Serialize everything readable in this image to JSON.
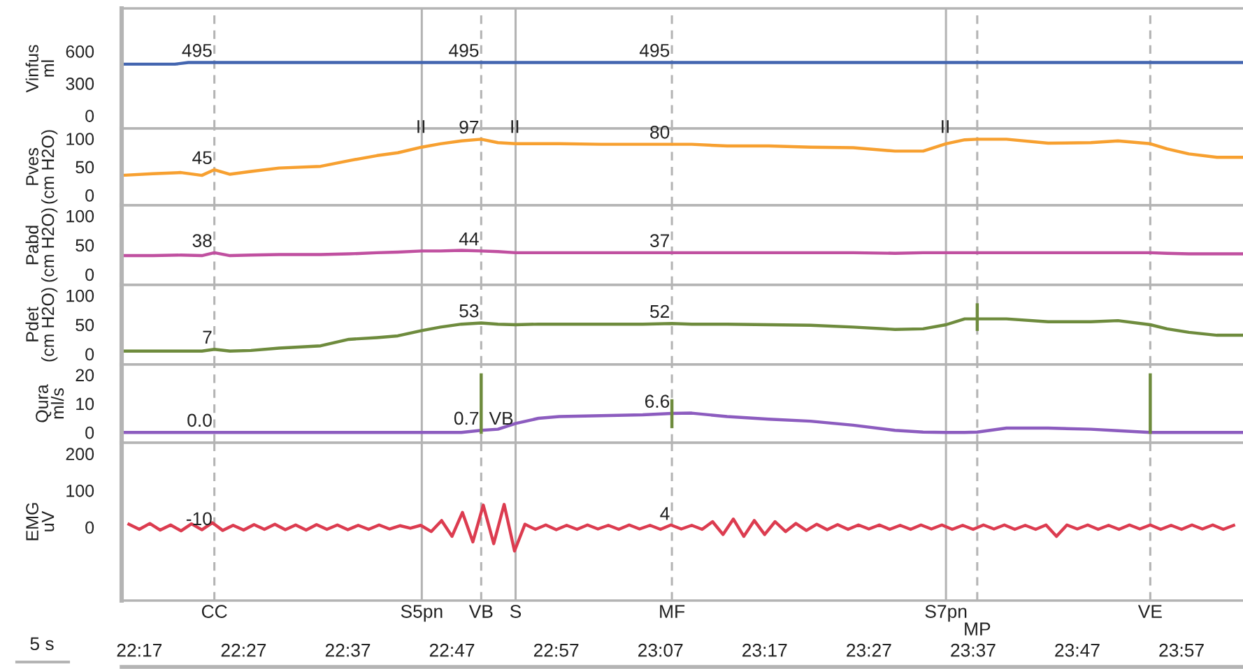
{
  "chart_data": [
    {
      "type": "line",
      "ylabel": "Vinfus\nml",
      "xlim": [
        22.255,
        24.0483
      ],
      "ylim": [
        -120,
        1000
      ],
      "yticks": [
        0,
        300,
        600
      ],
      "tick_labels": "y",
      "series": [
        {
          "color": "#4466b0",
          "x": [
            22.255,
            22.34,
            22.3617,
            24.0483
          ],
          "values": [
            480,
            480,
            495,
            495
          ]
        }
      ],
      "ref_lines": [
        {
          "axis": "x",
          "value": 22.4033,
          "line_style": "dashed"
        },
        {
          "axis": "x",
          "value": 22.735,
          "line_style": "solid"
        },
        {
          "axis": "x",
          "value": 22.83,
          "line_style": "dashed"
        },
        {
          "axis": "x",
          "value": 22.885,
          "line_style": "solid"
        },
        {
          "axis": "x",
          "value": 23.135,
          "line_style": "dashed"
        },
        {
          "axis": "x",
          "value": 23.5733,
          "line_style": "solid"
        },
        {
          "axis": "x",
          "value": 23.6233,
          "line_style": "dashed"
        },
        {
          "axis": "x",
          "value": 23.9,
          "line_style": "dashed"
        }
      ],
      "annotations": [
        {
          "text": "495",
          "x": 22.4033,
          "y": 495
        },
        {
          "text": "495",
          "x": 22.83,
          "y": 495
        },
        {
          "text": "495",
          "x": 23.135,
          "y": 495
        }
      ]
    },
    {
      "type": "line",
      "ylabel": "Pves\n(cm H2O)",
      "xlim": [
        22.255,
        24.0483
      ],
      "ylim": [
        -18,
        118
      ],
      "yticks": [
        0,
        50,
        100
      ],
      "tick_labels": "y",
      "x": [
        22.255,
        22.305,
        22.35,
        22.3833,
        22.4033,
        22.4283,
        22.4617,
        22.5067,
        22.5733,
        22.6183,
        22.6633,
        22.6967,
        22.735,
        22.765,
        22.7983,
        22.83,
        22.8567,
        22.885,
        22.9217,
        22.955,
        23.0217,
        23.0883,
        23.135,
        23.1667,
        23.2233,
        23.29,
        23.3567,
        23.425,
        23.4917,
        23.5367,
        23.5733,
        23.6033,
        23.6233,
        23.67,
        23.7367,
        23.805,
        23.8483,
        23.9,
        23.9267,
        23.9617,
        24.0067,
        24.0483
      ],
      "series": [
        {
          "color": "#f7a030",
          "values": [
            35,
            38,
            40,
            35,
            45,
            37,
            42,
            48,
            51,
            61,
            70,
            75,
            85,
            91,
            96,
            99,
            93,
            91,
            91,
            91,
            90,
            90,
            90,
            90,
            87,
            87,
            85,
            84,
            78,
            78,
            91,
            98,
            99,
            99,
            92,
            93,
            96,
            91,
            82,
            73,
            67,
            67
          ]
        }
      ],
      "ref_lines": [
        {
          "axis": "x",
          "value": 22.4033,
          "line_style": "dashed"
        },
        {
          "axis": "x",
          "value": 22.735,
          "line_style": "solid"
        },
        {
          "axis": "x",
          "value": 22.83,
          "line_style": "dashed"
        },
        {
          "axis": "x",
          "value": 22.885,
          "line_style": "solid"
        },
        {
          "axis": "x",
          "value": 23.135,
          "line_style": "dashed"
        },
        {
          "axis": "x",
          "value": 23.5733,
          "line_style": "solid"
        },
        {
          "axis": "x",
          "value": 23.6233,
          "line_style": "dashed"
        },
        {
          "axis": "x",
          "value": 23.9,
          "line_style": "dashed"
        }
      ],
      "annotations": [
        {
          "text": "45",
          "x": 22.4033,
          "y": 45
        },
        {
          "text": "97",
          "x": 22.83,
          "y": 99
        },
        {
          "text": "80",
          "x": 23.135,
          "y": 90
        },
        {
          "text": "II",
          "x": 22.745,
          "y": 100
        },
        {
          "text": "II",
          "x": 22.895,
          "y": 100
        },
        {
          "text": "II",
          "x": 23.5833,
          "y": 100
        }
      ]
    },
    {
      "type": "line",
      "ylabel": "Pabd\n(cm H2O)",
      "xlim": [
        22.255,
        24.0483
      ],
      "ylim": [
        -18,
        118
      ],
      "yticks": [
        0,
        50,
        100
      ],
      "tick_labels": "y",
      "x": [
        22.255,
        22.305,
        22.35,
        22.3833,
        22.4033,
        22.4283,
        22.4617,
        22.5067,
        22.5733,
        22.6183,
        22.6633,
        22.6967,
        22.735,
        22.765,
        22.7983,
        22.83,
        22.8567,
        22.885,
        22.9217,
        22.955,
        23.0217,
        23.0883,
        23.135,
        23.1667,
        23.2233,
        23.29,
        23.3567,
        23.425,
        23.4917,
        23.5367,
        23.5733,
        23.6033,
        23.6233,
        23.67,
        23.7367,
        23.805,
        23.8483,
        23.9,
        23.9267,
        23.9617,
        24.0067,
        24.0483
      ],
      "series": [
        {
          "color": "#c050a0",
          "values": [
            32,
            32,
            33,
            32,
            37,
            32,
            33,
            34,
            34,
            35,
            37,
            38,
            40,
            40,
            41,
            40,
            39,
            37,
            37,
            37,
            37,
            37,
            37,
            37,
            37,
            37,
            37,
            37,
            36,
            37,
            37,
            37,
            37,
            37,
            37,
            37,
            37,
            37,
            36,
            35,
            35,
            35
          ]
        }
      ],
      "ref_lines": [
        {
          "axis": "x",
          "value": 22.4033,
          "line_style": "dashed"
        },
        {
          "axis": "x",
          "value": 22.735,
          "line_style": "solid"
        },
        {
          "axis": "x",
          "value": 22.83,
          "line_style": "dashed"
        },
        {
          "axis": "x",
          "value": 22.885,
          "line_style": "solid"
        },
        {
          "axis": "x",
          "value": 23.135,
          "line_style": "dashed"
        },
        {
          "axis": "x",
          "value": 23.5733,
          "line_style": "solid"
        },
        {
          "axis": "x",
          "value": 23.6233,
          "line_style": "dashed"
        },
        {
          "axis": "x",
          "value": 23.9,
          "line_style": "dashed"
        }
      ],
      "annotations": [
        {
          "text": "38",
          "x": 22.4033,
          "y": 37
        },
        {
          "text": "44",
          "x": 22.83,
          "y": 40
        },
        {
          "text": "37",
          "x": 23.135,
          "y": 37
        }
      ]
    },
    {
      "type": "line",
      "ylabel": "Pdet\n(cm H2O)",
      "xlim": [
        22.255,
        24.0483
      ],
      "ylim": [
        -18,
        118
      ],
      "yticks": [
        0,
        50,
        100
      ],
      "tick_labels": "y",
      "x": [
        22.255,
        22.305,
        22.35,
        22.3833,
        22.4033,
        22.4283,
        22.4617,
        22.5067,
        22.5733,
        22.6183,
        22.6633,
        22.6967,
        22.735,
        22.765,
        22.7983,
        22.83,
        22.8567,
        22.885,
        22.9217,
        22.955,
        23.0217,
        23.0883,
        23.135,
        23.1667,
        23.2233,
        23.29,
        23.3567,
        23.425,
        23.4917,
        23.5367,
        23.5733,
        23.6033,
        23.6233,
        23.67,
        23.7367,
        23.805,
        23.8483,
        23.9,
        23.9267,
        23.9617,
        24.0067,
        24.0483
      ],
      "series": [
        {
          "color": "#6e8b3d",
          "values": [
            5,
            5,
            5,
            5,
            8,
            5,
            6,
            10,
            14,
            25,
            28,
            31,
            40,
            46,
            51,
            53,
            51,
            50,
            51,
            51,
            51,
            51,
            52,
            51,
            51,
            50,
            49,
            46,
            42,
            43,
            50,
            60,
            60,
            60,
            55,
            55,
            57,
            50,
            43,
            37,
            32,
            32
          ]
        },
        {
          "color": "#6e8b3d",
          "x": [
            23.6233,
            23.6233
          ],
          "values": [
            42,
            84
          ]
        }
      ],
      "ref_lines": [
        {
          "axis": "x",
          "value": 22.4033,
          "line_style": "dashed"
        },
        {
          "axis": "x",
          "value": 22.735,
          "line_style": "solid"
        },
        {
          "axis": "x",
          "value": 22.83,
          "line_style": "dashed"
        },
        {
          "axis": "x",
          "value": 22.885,
          "line_style": "solid"
        },
        {
          "axis": "x",
          "value": 23.135,
          "line_style": "dashed"
        },
        {
          "axis": "x",
          "value": 23.5733,
          "line_style": "solid"
        },
        {
          "axis": "x",
          "value": 23.6233,
          "line_style": "dashed"
        },
        {
          "axis": "x",
          "value": 23.9,
          "line_style": "dashed"
        }
      ],
      "annotations": [
        {
          "text": "7",
          "x": 22.4033,
          "y": 8
        },
        {
          "text": "53",
          "x": 22.83,
          "y": 53
        },
        {
          "text": "52",
          "x": 23.135,
          "y": 52
        }
      ]
    },
    {
      "type": "line",
      "ylabel": "Qura\nml/s",
      "xlim": [
        22.255,
        24.0483
      ],
      "ylim": [
        -3.6,
        23.6
      ],
      "yticks": [
        0,
        10,
        20
      ],
      "tick_labels": "y",
      "x": [
        22.255,
        22.305,
        22.35,
        22.3833,
        22.4033,
        22.4283,
        22.4617,
        22.5067,
        22.5733,
        22.6183,
        22.6633,
        22.6967,
        22.735,
        22.765,
        22.7983,
        22.83,
        22.8567,
        22.885,
        22.9217,
        22.955,
        23.0217,
        23.0883,
        23.135,
        23.1667,
        23.2233,
        23.29,
        23.3567,
        23.425,
        23.4917,
        23.5367,
        23.5733,
        23.6033,
        23.6233,
        23.67,
        23.7367,
        23.805,
        23.8483,
        23.9,
        23.9267,
        23.9617,
        24.0067,
        24.0483
      ],
      "series": [
        {
          "color": "#8c5cbf",
          "values": [
            0,
            0,
            0,
            0,
            0,
            0,
            0,
            0,
            0,
            0,
            0,
            0,
            0,
            0,
            0,
            0.7,
            1.1,
            3.1,
            4.9,
            5.5,
            5.8,
            6.1,
            6.6,
            6.7,
            5.5,
            4.6,
            3.9,
            2.5,
            0.7,
            0.1,
            0,
            0,
            0.1,
            1.5,
            1.5,
            1.1,
            0.6,
            0,
            0,
            0,
            0,
            0
          ]
        },
        {
          "color": "#6e8b3d",
          "x": [
            22.83,
            22.83
          ],
          "values": [
            0,
            20
          ]
        },
        {
          "color": "#6e8b3d",
          "x": [
            23.135,
            23.135
          ],
          "values": [
            2,
            11
          ]
        },
        {
          "color": "#6e8b3d",
          "x": [
            23.9,
            23.9
          ],
          "values": [
            0,
            20
          ]
        }
      ],
      "ref_lines": [
        {
          "axis": "x",
          "value": 22.4033,
          "line_style": "dashed"
        },
        {
          "axis": "x",
          "value": 22.735,
          "line_style": "solid"
        },
        {
          "axis": "x",
          "value": 22.83,
          "line_style": "dashed"
        },
        {
          "axis": "x",
          "value": 22.885,
          "line_style": "solid"
        },
        {
          "axis": "x",
          "value": 23.135,
          "line_style": "dashed"
        },
        {
          "axis": "x",
          "value": 23.5733,
          "line_style": "solid"
        },
        {
          "axis": "x",
          "value": 23.6233,
          "line_style": "dashed"
        },
        {
          "axis": "x",
          "value": 23.9,
          "line_style": "dashed"
        }
      ],
      "annotations": [
        {
          "text": "0.0",
          "x": 22.4033,
          "y": 0
        },
        {
          "text": "0.7",
          "x": 22.83,
          "y": 0.7
        },
        {
          "text": "VB",
          "x": 22.885,
          "y": 0.7
        },
        {
          "text": "6.6",
          "x": 23.135,
          "y": 6.6
        }
      ]
    },
    {
      "type": "line",
      "ylabel": "EMG\nuV",
      "xlim": [
        22.255,
        24.0483
      ],
      "ylim": [
        -200,
        230
      ],
      "yticks": [
        0,
        100,
        200
      ],
      "xticks": [
        {
          "value": 22.2833,
          "label": "22:17"
        },
        {
          "value": 22.45,
          "label": "22:27"
        },
        {
          "value": 22.6167,
          "label": "22:37"
        },
        {
          "value": 22.7833,
          "label": "22:47"
        },
        {
          "value": 22.95,
          "label": "22:57"
        },
        {
          "value": 23.1167,
          "label": "23:07"
        },
        {
          "value": 23.2833,
          "label": "23:17"
        },
        {
          "value": 23.45,
          "label": "23:27"
        },
        {
          "value": 23.6167,
          "label": "23:37"
        },
        {
          "value": 23.7833,
          "label": "23:47"
        },
        {
          "value": 23.95,
          "label": "23:57"
        }
      ],
      "x": [
        22.2667,
        22.2833,
        22.3,
        22.3167,
        22.3333,
        22.35,
        22.3667,
        22.3833,
        22.4,
        22.4167,
        22.4333,
        22.45,
        22.4667,
        22.4833,
        22.5,
        22.5167,
        22.5333,
        22.55,
        22.5667,
        22.5833,
        22.6,
        22.6167,
        22.6333,
        22.65,
        22.6667,
        22.6833,
        22.7,
        22.7167,
        22.7333,
        22.75,
        22.7667,
        22.7833,
        22.8,
        22.8167,
        22.8333,
        22.85,
        22.8667,
        22.8833,
        22.9,
        22.9167,
        22.9333,
        22.95,
        22.9667,
        22.9833,
        23.0,
        23.0167,
        23.0333,
        23.05,
        23.0667,
        23.0833,
        23.1,
        23.1167,
        23.1333,
        23.15,
        23.1667,
        23.1833,
        23.2,
        23.2167,
        23.2333,
        23.25,
        23.2667,
        23.2833,
        23.3,
        23.3167,
        23.3333,
        23.35,
        23.3667,
        23.3833,
        23.4,
        23.4167,
        23.4333,
        23.45,
        23.4667,
        23.4833,
        23.5,
        23.5167,
        23.5333,
        23.55,
        23.5667,
        23.5833,
        23.6,
        23.6167,
        23.6333,
        23.65,
        23.6667,
        23.6833,
        23.7,
        23.7167,
        23.7333,
        23.75,
        23.7667,
        23.7833,
        23.8,
        23.8167,
        23.8333,
        23.85,
        23.8667,
        23.8833,
        23.9,
        23.9167,
        23.9333,
        23.95,
        23.9667,
        23.9833,
        24.0,
        24.0167,
        24.0333
      ],
      "series": [
        {
          "color": "#dc3c50",
          "values": [
            8,
            -6,
            10,
            -8,
            6,
            -10,
            9,
            -7,
            12,
            -9,
            5,
            -8,
            7,
            -6,
            8,
            -7,
            6,
            -8,
            7,
            -6,
            6,
            -7,
            5,
            -6,
            6,
            -5,
            4,
            -3,
            5,
            -12,
            18,
            -25,
            40,
            -40,
            60,
            -45,
            62,
            -65,
            8,
            -6,
            6,
            -7,
            5,
            -6,
            6,
            -5,
            5,
            -6,
            6,
            -5,
            5,
            -6,
            6,
            -5,
            5,
            -6,
            15,
            -20,
            22,
            -25,
            18,
            -20,
            15,
            -12,
            10,
            -9,
            8,
            -7,
            7,
            -6,
            6,
            -5,
            6,
            -6,
            5,
            -6,
            6,
            -5,
            6,
            -6,
            5,
            -6,
            6,
            -5,
            6,
            -6,
            5,
            -6,
            6,
            -25,
            6,
            -5,
            6,
            -6,
            5,
            -6,
            6,
            -5,
            6,
            -6,
            5,
            -6,
            6,
            -5,
            6,
            -6,
            5
          ]
        }
      ],
      "ref_lines": [
        {
          "axis": "x",
          "value": 22.4033,
          "label": "CC",
          "line_style": "dashed"
        },
        {
          "axis": "x",
          "value": 22.735,
          "label": "S5pn",
          "line_style": "solid"
        },
        {
          "axis": "x",
          "value": 22.83,
          "label": "VB",
          "line_style": "dashed"
        },
        {
          "axis": "x",
          "value": 22.885,
          "label": "S",
          "line_style": "solid"
        },
        {
          "axis": "x",
          "value": 23.135,
          "label": "MF",
          "line_style": "dashed"
        },
        {
          "axis": "x",
          "value": 23.5733,
          "label": "S7pn",
          "line_style": "solid"
        },
        {
          "axis": "x",
          "value": 23.6233,
          "label": "MP",
          "line_style": "dashed"
        },
        {
          "axis": "x",
          "value": 23.9,
          "label": "VE",
          "line_style": "dashed"
        }
      ],
      "annotations": [
        {
          "text": "-10",
          "x": 22.4033,
          "y": -10
        },
        {
          "text": "4",
          "x": 23.135,
          "y": 4
        },
        "5 s"
      ]
    }
  ]
}
